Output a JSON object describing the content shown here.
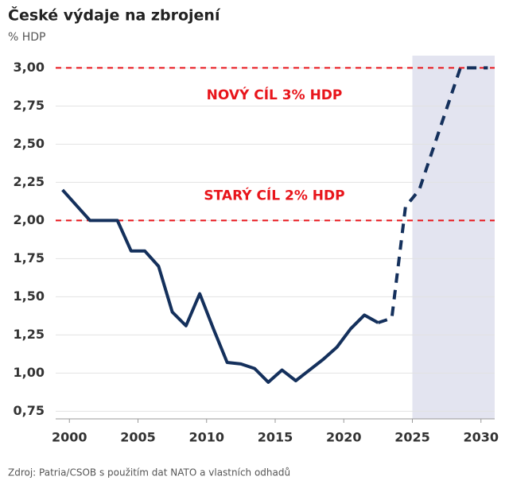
{
  "chart_data": {
    "type": "line",
    "title": "České výdaje na zbrojení",
    "subtitle": "% HDP",
    "source": "Zdroj: Patria/CSOB s použitím dat NATO a vlastních odhadů",
    "xlim": [
      1999,
      2031
    ],
    "ylim": [
      0.7,
      3.08
    ],
    "xticks": [
      2000,
      2005,
      2010,
      2015,
      2020,
      2025,
      2030
    ],
    "yticks": [
      {
        "value": 0.75,
        "label": "0,75"
      },
      {
        "value": 1,
        "label": "1,00"
      },
      {
        "value": 1.25,
        "label": "1,25"
      },
      {
        "value": 1.5,
        "label": "1,50"
      },
      {
        "value": 1.75,
        "label": "1,75"
      },
      {
        "value": 2,
        "label": "2,00"
      },
      {
        "value": 2.25,
        "label": "2,25"
      },
      {
        "value": 2.5,
        "label": "2,50"
      },
      {
        "value": 2.75,
        "label": "2,75"
      },
      {
        "value": 3,
        "label": "3,00"
      }
    ],
    "grid": true,
    "shaded_region": {
      "from": 2025,
      "color": "#e3e4f0"
    },
    "reference_lines": [
      {
        "value": 3,
        "label": "NOVÝ CÍL 3% HDP",
        "label_value": 2.82,
        "color": "#e8151b"
      },
      {
        "value": 2,
        "label": "STARÝ CÍL 2% HDP",
        "label_value": 2.16,
        "color": "#e8151b"
      }
    ],
    "series": [
      {
        "style": "solid",
        "color": "#14305c",
        "x": [
          1999.5,
          2000.5,
          2001.5,
          2002.5,
          2003.5,
          2004.5,
          2005.5,
          2006.5,
          2007.5,
          2008.5,
          2009.5,
          2010.5,
          2011.5,
          2012.5,
          2013.5,
          2014.5,
          2015.5,
          2016.5,
          2017.5,
          2018.5,
          2019.5,
          2020.5,
          2021.5,
          2022.5
        ],
        "values": [
          2.2,
          2.1,
          2.0,
          2.0,
          2.0,
          1.8,
          1.8,
          1.7,
          1.4,
          1.31,
          1.52,
          1.29,
          1.07,
          1.06,
          1.03,
          0.94,
          1.02,
          0.95,
          1.02,
          1.09,
          1.17,
          1.29,
          1.38,
          1.33
        ]
      },
      {
        "style": "dashed",
        "color": "#14305c",
        "x": [
          2022.5,
          2023.5,
          2024.5,
          2025.5,
          2028.5,
          2029.5,
          2030.5
        ],
        "values": [
          1.33,
          1.36,
          2.09,
          2.2,
          3.0,
          3.0,
          3.0
        ]
      }
    ]
  }
}
